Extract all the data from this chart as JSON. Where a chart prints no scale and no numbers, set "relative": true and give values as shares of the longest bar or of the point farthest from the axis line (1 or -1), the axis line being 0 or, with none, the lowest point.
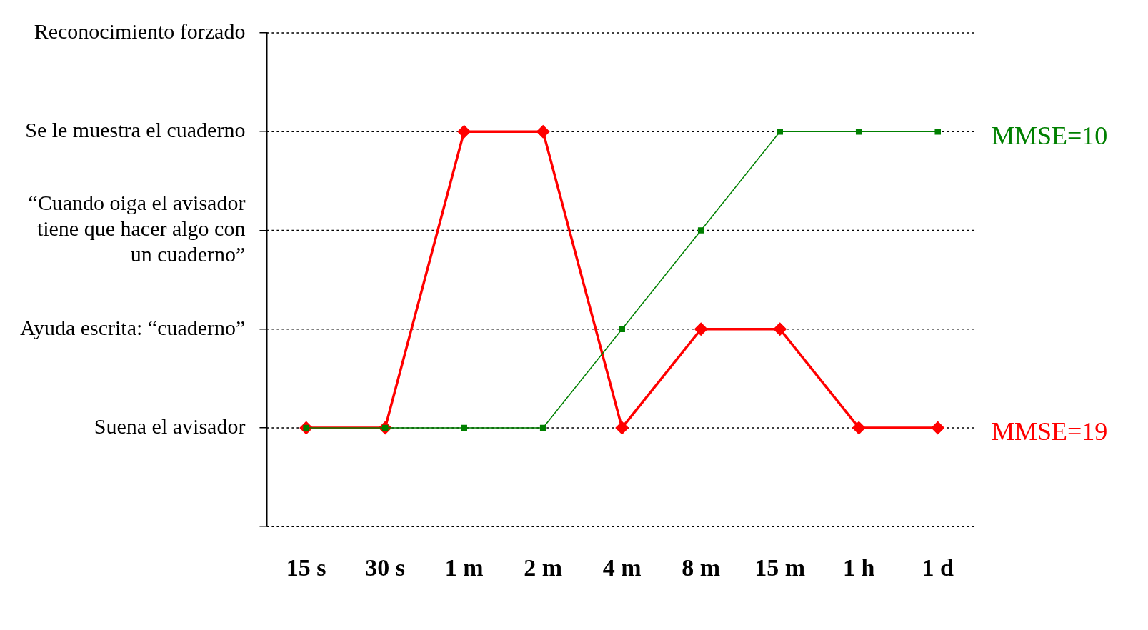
{
  "chart_data": {
    "type": "line",
    "relative": true,
    "categories": [
      "15 s",
      "30 s",
      "1 m",
      "2 m",
      "4 m",
      "8 m",
      "15 m",
      "1 h",
      "1 d"
    ],
    "series": [
      {
        "name": "MMSE=19",
        "color": "#ff0000",
        "marker": "diamond",
        "values": [
          0.25,
          0.25,
          1,
          1,
          0.25,
          0.5,
          0.5,
          0.25,
          0.25
        ]
      },
      {
        "name": "MMSE=10",
        "color": "#008000",
        "marker": "square",
        "values": [
          0.25,
          0.25,
          0.25,
          0.25,
          0.5,
          0.75,
          1,
          1,
          1
        ]
      }
    ],
    "ref_lines": [
      {
        "axis": "y",
        "value": 0,
        "color": "#000000",
        "line_style": "dotted"
      },
      {
        "axis": "y",
        "value": 0.25,
        "label": "Suena el avisador",
        "color": "#000000",
        "line_style": "dotted"
      },
      {
        "axis": "y",
        "value": 0.5,
        "label": "Ayuda escrita: “cuaderno”",
        "color": "#000000",
        "line_style": "dotted"
      },
      {
        "axis": "y",
        "value": 0.75,
        "label": "“Cuando oiga el avisador tiene que hacer algo con un cuaderno”",
        "color": "#000000",
        "line_style": "dotted"
      },
      {
        "axis": "y",
        "value": 1,
        "label": "Se le muestra el cuaderno",
        "color": "#000000",
        "line_style": "dotted"
      },
      {
        "axis": "y",
        "value": 1.25,
        "label": "Reconocimiento forzado",
        "color": "#000000",
        "line_style": "dotted"
      }
    ],
    "legend": false,
    "line_style": "solid"
  }
}
